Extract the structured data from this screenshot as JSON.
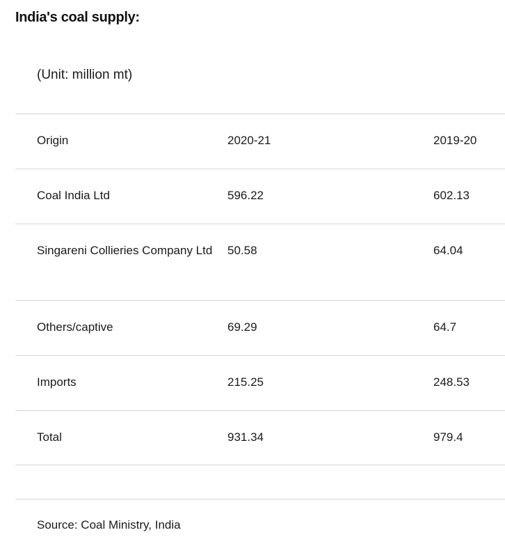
{
  "title": "India's coal supply:",
  "unit": "(Unit: million mt)",
  "table": {
    "headers": [
      "Origin",
      "2020-21",
      "2019-20"
    ],
    "rows": [
      [
        "Coal India Ltd",
        "596.22",
        "602.13"
      ],
      [
        "Singareni Collieries Company Ltd",
        "50.58",
        "64.04"
      ],
      [
        "Others/captive",
        "69.29",
        "64.7"
      ],
      [
        "Imports",
        "215.25",
        "248.53"
      ],
      [
        "Total",
        "931.34",
        "979.4"
      ]
    ]
  },
  "source": "Source: Coal Ministry, India"
}
